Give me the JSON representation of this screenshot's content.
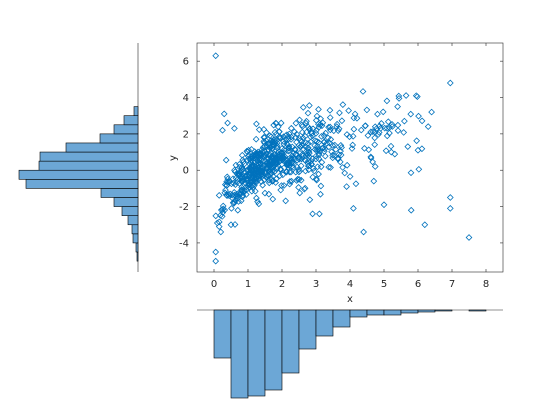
{
  "chart_data": [
    {
      "type": "scatter",
      "xlabel": "x",
      "ylabel": "y",
      "xlim": [
        -0.5,
        8.5
      ],
      "ylim": [
        -5.6,
        7.0
      ],
      "xticks": [
        0,
        1,
        2,
        3,
        4,
        5,
        6,
        7,
        8
      ],
      "yticks": [
        -4,
        -2,
        0,
        2,
        4,
        6
      ],
      "marker": "diamond-open",
      "color": "#0072BD",
      "grid": false,
      "points_explicit": [
        [
          0.05,
          6.3
        ],
        [
          0.05,
          -4.5
        ],
        [
          0.05,
          -5.0
        ],
        [
          6.95,
          4.8
        ],
        [
          7.5,
          -3.7
        ],
        [
          6.95,
          -1.5
        ],
        [
          6.95,
          -2.1
        ],
        [
          6.2,
          -3.0
        ],
        [
          5.8,
          -2.2
        ],
        [
          5.0,
          -1.9
        ],
        [
          4.4,
          -3.4
        ],
        [
          4.1,
          -2.1
        ],
        [
          3.9,
          -0.9
        ],
        [
          4.7,
          -0.6
        ],
        [
          6.0,
          1.1
        ],
        [
          6.4,
          3.2
        ],
        [
          5.6,
          2.7
        ],
        [
          5.4,
          3.5
        ],
        [
          4.9,
          2.3
        ],
        [
          5.7,
          1.3
        ],
        [
          6.3,
          2.4
        ],
        [
          3.1,
          -2.4
        ],
        [
          2.9,
          -2.4
        ],
        [
          0.2,
          -3.4
        ],
        [
          0.5,
          -3.0
        ],
        [
          0.7,
          -2.2
        ],
        [
          0.3,
          3.1
        ],
        [
          0.4,
          2.6
        ],
        [
          0.25,
          2.2
        ],
        [
          0.6,
          2.3
        ]
      ],
      "bulk_cloud": {
        "description": "dense cloud rising from (0.1,-3) to (5,2)",
        "count": 700
      }
    },
    {
      "type": "bar",
      "role": "x-marginal-histogram",
      "orientation": "downward",
      "bin_edges": [
        0.0,
        0.5,
        1.0,
        1.5,
        2.0,
        2.5,
        3.0,
        3.5,
        4.0,
        4.5,
        5.0,
        5.5,
        6.0,
        6.5,
        7.0,
        7.5,
        8.0
      ],
      "values": [
        48,
        88,
        86,
        80,
        63,
        39,
        26,
        17,
        7,
        5,
        5,
        3,
        2,
        1,
        0,
        1
      ],
      "color": "#6CA7D6",
      "edgecolor": "#000000"
    },
    {
      "type": "bar",
      "role": "y-marginal-histogram",
      "orientation": "leftward",
      "bin_edges": [
        -5.0,
        -4.5,
        -4.0,
        -3.5,
        -3.0,
        -2.5,
        -2.0,
        -1.5,
        -1.0,
        -0.5,
        0.0,
        0.5,
        1.0,
        1.5,
        2.0,
        2.5,
        3.0,
        3.5
      ],
      "values": [
        1,
        2,
        5,
        6,
        10,
        16,
        24,
        37,
        112,
        119,
        99,
        98,
        72,
        38,
        24,
        14,
        4
      ],
      "color": "#6CA7D6",
      "edgecolor": "#000000"
    }
  ]
}
